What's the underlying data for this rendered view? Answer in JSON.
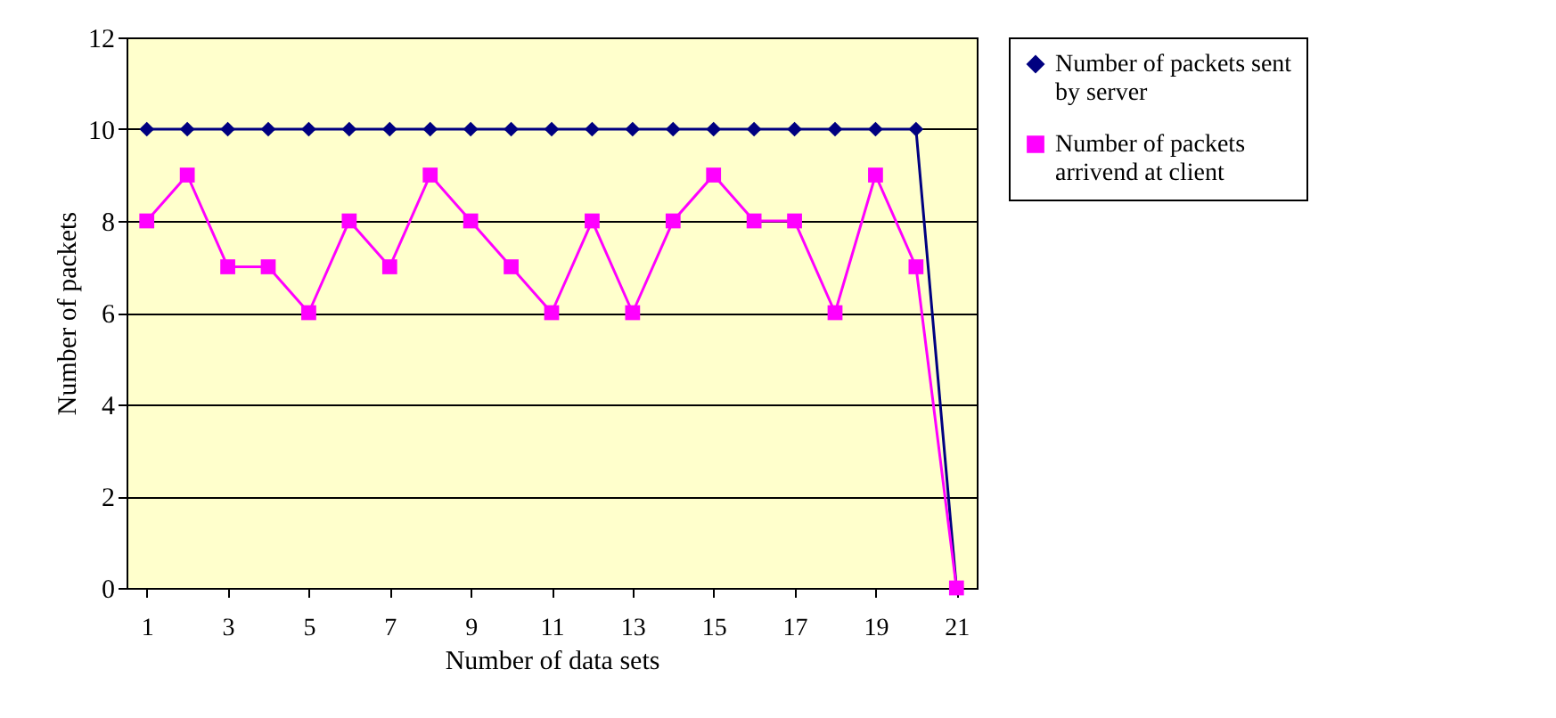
{
  "chart_data": {
    "type": "line",
    "xlabel": "Number of data sets",
    "ylabel": "Number of  packets",
    "x": [
      1,
      2,
      3,
      4,
      5,
      6,
      7,
      8,
      9,
      10,
      11,
      12,
      13,
      14,
      15,
      16,
      17,
      18,
      19,
      20,
      21
    ],
    "xlim": [
      0.5,
      21.5
    ],
    "xticks": [
      1,
      3,
      5,
      7,
      9,
      11,
      13,
      15,
      17,
      19,
      21
    ],
    "series": [
      {
        "name": "Number of packets sent by server",
        "color": "#000080",
        "marker": "diamond",
        "values": [
          10,
          10,
          10,
          10,
          10,
          10,
          10,
          10,
          10,
          10,
          10,
          10,
          10,
          10,
          10,
          10,
          10,
          10,
          10,
          10,
          0
        ]
      },
      {
        "name": "Number of packets arrivend at client",
        "color": "#ff00ff",
        "marker": "square",
        "values": [
          8,
          9,
          7,
          7,
          6,
          8,
          7,
          9,
          8,
          7,
          6,
          8,
          6,
          8,
          9,
          8,
          8,
          6,
          9,
          7,
          0
        ]
      }
    ],
    "ylim": [
      0,
      12
    ],
    "yticks": [
      0,
      2,
      4,
      6,
      8,
      10,
      12
    ],
    "grid": "y",
    "legend": "right"
  }
}
